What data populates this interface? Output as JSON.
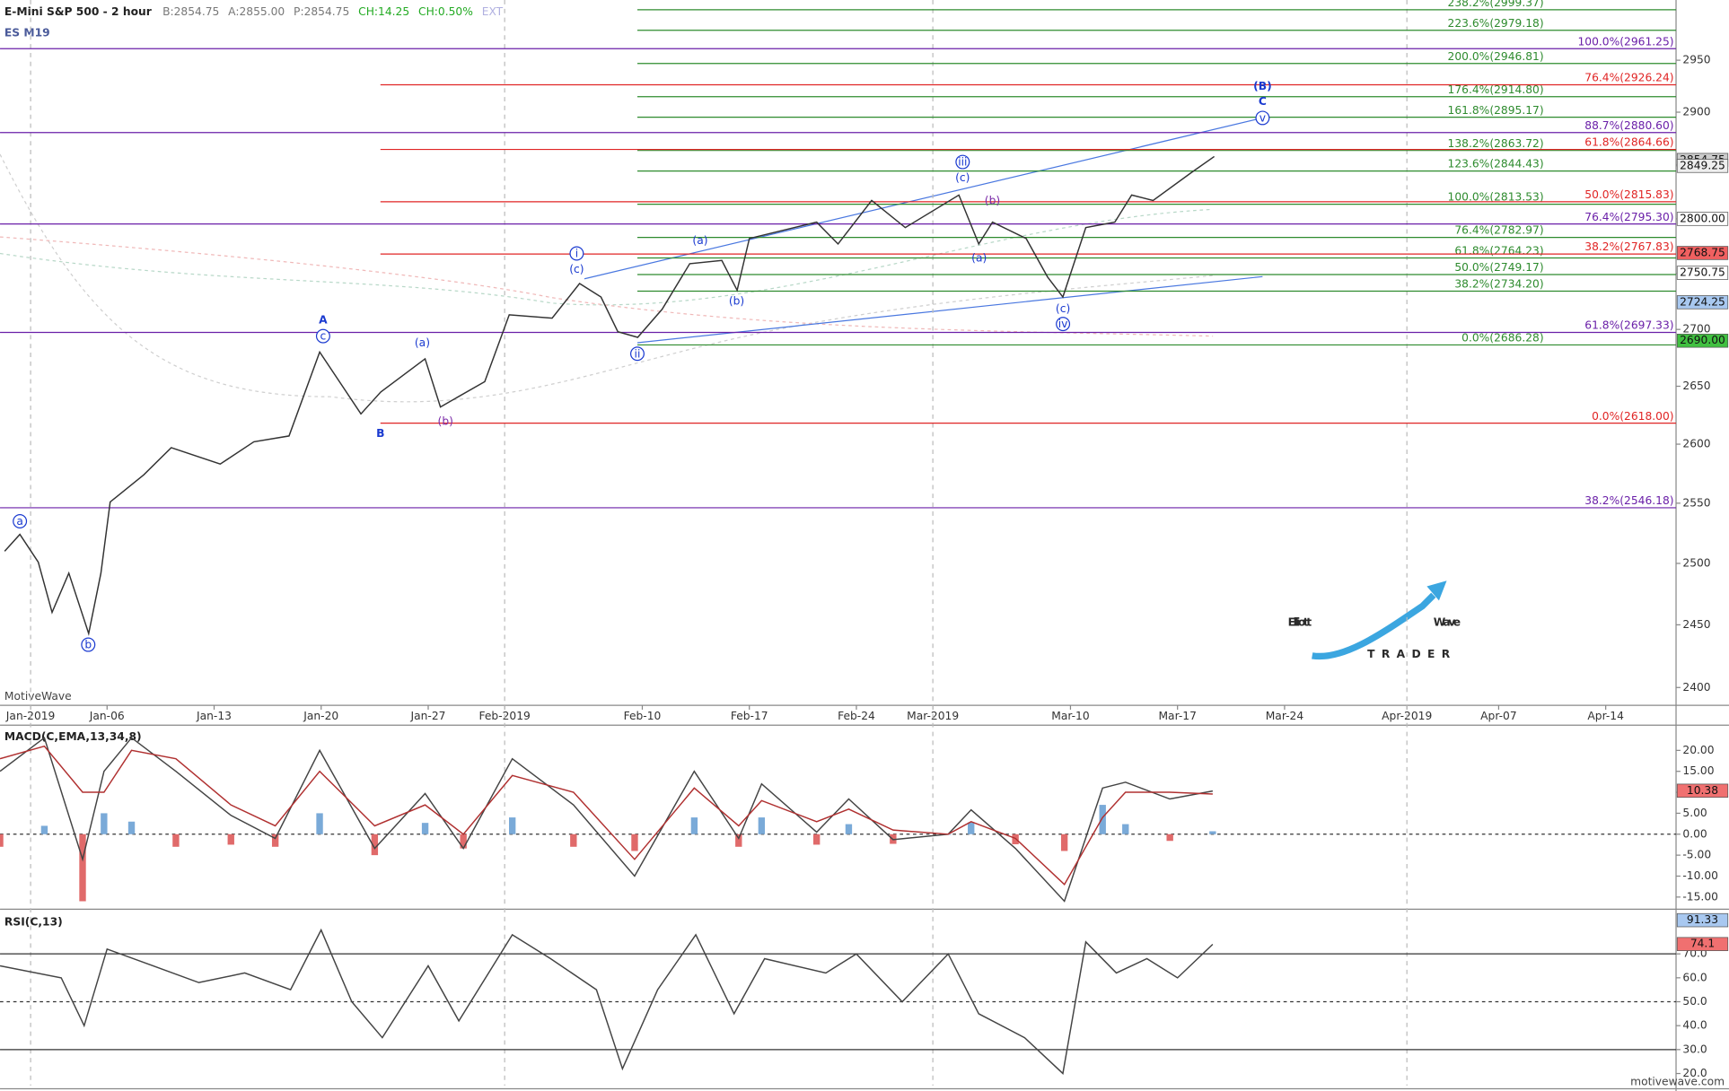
{
  "header": {
    "title": "E-Mini S&P 500 - 2 hour",
    "symbol": "ES M19",
    "quote": [
      {
        "text": "B:2854.75",
        "color": "#777777"
      },
      {
        "text": "A:2855.00",
        "color": "#777777"
      },
      {
        "text": "P:2854.75",
        "color": "#777777"
      },
      {
        "text": "CH:14.25",
        "color": "#22aa22"
      },
      {
        "text": "CH:0.50%",
        "color": "#22aa22"
      },
      {
        "text": "EXT",
        "color": "#b0b0e0"
      }
    ],
    "source": "MotiveWave",
    "watermark": "motivewave.com"
  },
  "logo": {
    "word1": "Elliott",
    "word2": "Wave",
    "sub": "TRADER"
  },
  "chart_data": [
    {
      "type": "line",
      "log": true,
      "color": "#333333",
      "xlim": [
        -2.0,
        107.6
      ],
      "xticks": [
        {
          "value": 0,
          "label": "Jan-2019"
        },
        {
          "value": 5,
          "label": "Jan-06"
        },
        {
          "value": 12,
          "label": "Jan-13"
        },
        {
          "value": 19,
          "label": "Jan-20"
        },
        {
          "value": 26,
          "label": "Jan-27"
        },
        {
          "value": 31,
          "label": "Feb-2019"
        },
        {
          "value": 40,
          "label": "Feb-10"
        },
        {
          "value": 47,
          "label": "Feb-17"
        },
        {
          "value": 54,
          "label": "Feb-24"
        },
        {
          "value": 59,
          "label": "Mar-2019"
        },
        {
          "value": 68,
          "label": "Mar-10"
        },
        {
          "value": 75,
          "label": "Mar-17"
        },
        {
          "value": 82,
          "label": "Mar-24"
        },
        {
          "value": 90,
          "label": "Apr-2019"
        },
        {
          "value": 96,
          "label": "Apr-07"
        },
        {
          "value": 103,
          "label": "Apr-14"
        }
      ],
      "ylim": [
        2386,
        3009
      ],
      "yticks": [
        2400,
        2450,
        2500,
        2550,
        2600,
        2650,
        2700,
        2750,
        2800,
        2850,
        2900,
        2950
      ],
      "x": [
        -1.7,
        -0.7,
        0.5,
        1.4,
        2.5,
        3.8,
        4.6,
        5.2,
        7.4,
        9.2,
        12.4,
        14.6,
        16.9,
        18.9,
        21.6,
        22.9,
        25.8,
        26.8,
        29.7,
        31.3,
        34.1,
        35.9,
        37.3,
        38.4,
        39.7,
        41.3,
        43.1,
        45.2,
        46.2,
        47.0,
        51.4,
        52.8,
        55.0,
        57.2,
        60.7,
        62.0,
        62.9,
        65.1,
        66.5,
        67.5,
        69.0,
        70.9,
        72.0,
        73.4,
        75.9,
        77.4
      ],
      "values": [
        2510,
        2524,
        2501,
        2460,
        2492,
        2443,
        2492,
        2551,
        2574,
        2597,
        2583,
        2602,
        2607,
        2680,
        2626,
        2645,
        2674,
        2632,
        2654,
        2713,
        2710,
        2741,
        2729,
        2698,
        2693,
        2718,
        2759,
        2762,
        2735,
        2782,
        2797,
        2777,
        2817,
        2792,
        2822,
        2777,
        2797,
        2782,
        2747,
        2729,
        2792,
        2797,
        2822,
        2817,
        2843,
        2858
      ],
      "fib_levels": [
        {
          "label": "238.2%(2999.37)",
          "value": 2999.37,
          "color": "#2e8b2e"
        },
        {
          "label": "223.6%(2979.18)",
          "value": 2979.18,
          "color": "#2e8b2e"
        },
        {
          "label": "200.0%(2946.81)",
          "value": 2946.81,
          "color": "#2e8b2e"
        },
        {
          "label": "176.4%(2914.80)",
          "value": 2914.8,
          "color": "#2e8b2e"
        },
        {
          "label": "161.8%(2895.17)",
          "value": 2895.17,
          "color": "#2e8b2e"
        },
        {
          "label": "138.2%(2863.72)",
          "value": 2863.72,
          "color": "#2e8b2e"
        },
        {
          "label": "123.6%(2844.43)",
          "value": 2844.43,
          "color": "#2e8b2e"
        },
        {
          "label": "100.0%(2813.53)",
          "value": 2813.53,
          "color": "#2e8b2e"
        },
        {
          "label": "76.4%(2782.97)",
          "value": 2782.97,
          "color": "#2e8b2e"
        },
        {
          "label": "61.8%(2764.23)",
          "value": 2764.23,
          "color": "#2e8b2e"
        },
        {
          "label": "50.0%(2749.17)",
          "value": 2749.17,
          "color": "#2e8b2e"
        },
        {
          "label": "38.2%(2734.20)",
          "value": 2734.2,
          "color": "#2e8b2e"
        },
        {
          "label": "0.0%(2686.28)",
          "value": 2686.28,
          "color": "#2e8b2e"
        },
        {
          "label": "76.4%(2926.24)",
          "value": 2926.24,
          "color": "#e02424"
        },
        {
          "label": "61.8%(2864.66)",
          "value": 2864.66,
          "color": "#e02424"
        },
        {
          "label": "50.0%(2815.83)",
          "value": 2815.83,
          "color": "#e02424"
        },
        {
          "label": "38.2%(2767.83)",
          "value": 2767.83,
          "color": "#e02424"
        },
        {
          "label": "0.0%(2618.00)",
          "value": 2618.0,
          "color": "#e02424"
        },
        {
          "label": "100.0%(2961.25)",
          "value": 2961.25,
          "color": "#6a1fa8"
        },
        {
          "label": "88.7%(2880.60)",
          "value": 2880.6,
          "color": "#6a1fa8"
        },
        {
          "label": "76.4%(2795.30)",
          "value": 2795.3,
          "color": "#6a1fa8"
        },
        {
          "label": "61.8%(2697.33)",
          "value": 2697.33,
          "color": "#6a1fa8"
        },
        {
          "label": "38.2%(2546.18)",
          "value": 2546.18,
          "color": "#6a1fa8"
        }
      ],
      "price_tags": [
        {
          "value": 2854.75,
          "label": "2854.75",
          "color": "#cccccc"
        },
        {
          "value": 2849.25,
          "label": "2849.25",
          "color": "#eeeeee"
        },
        {
          "value": 2800.0,
          "label": "2800.00",
          "color": "#ffffff"
        },
        {
          "value": 2768.75,
          "label": "2768.75",
          "color": "#f06060"
        },
        {
          "value": 2750.75,
          "label": "2750.75",
          "color": "#ffffff"
        },
        {
          "value": 2724.25,
          "label": "2724.25",
          "color": "#a8c8f0"
        },
        {
          "value": 2690.0,
          "label": "2690.00",
          "color": "#40c040"
        }
      ],
      "wave_labels": [
        "a",
        "b",
        "A",
        "c",
        "B",
        "(a)",
        "(b)",
        "i",
        "(c)",
        "ii",
        "(a)",
        "(b)",
        "iii",
        "(c)",
        "(b)",
        "(a)",
        "(c)",
        "iv",
        "v",
        "C",
        "(B)"
      ]
    },
    {
      "type": "line",
      "title": "MACD(C,EMA,13,34,8)",
      "xlim": [
        -2.0,
        107.6
      ],
      "ylim": [
        -17.1,
        25.5
      ],
      "yticks": [
        {
          "value": 20,
          "label": "20.00"
        },
        {
          "value": 15,
          "label": "15.00"
        },
        {
          "value": 10,
          "label": "10.00"
        },
        {
          "value": 5,
          "label": "5.00"
        },
        {
          "value": 0,
          "label": "0.00"
        },
        {
          "value": -5,
          "label": "-5.00"
        },
        {
          "value": -10,
          "label": "-10.00"
        },
        {
          "value": -15,
          "label": "-15.00"
        }
      ],
      "x": [
        -2.0,
        0.9,
        3.4,
        4.8,
        6.6,
        9.5,
        13.1,
        16.0,
        18.9,
        22.5,
        25.8,
        28.3,
        31.5,
        35.5,
        39.5,
        43.4,
        46.3,
        47.8,
        51.4,
        53.5,
        56.4,
        60.0,
        61.5,
        64.4,
        67.6,
        70.1,
        71.6,
        74.5,
        77.3
      ],
      "series": [
        {
          "color": "#444444",
          "values": [
            15,
            23,
            -6,
            15,
            23,
            15,
            4.5,
            -1,
            20,
            -3.4,
            9.7,
            -3.4,
            18,
            7,
            -10,
            15,
            -1,
            12,
            0.5,
            8.4,
            -1.3,
            0,
            5.8,
            -3.4,
            -16,
            11,
            12.4,
            8.4,
            10.3
          ]
        },
        {
          "color": "#b03030",
          "values": [
            18,
            21,
            10,
            10,
            20,
            18,
            7,
            2,
            15,
            2,
            7,
            0,
            14,
            10,
            -6,
            11,
            2,
            8,
            3,
            6,
            1,
            0,
            3,
            -1,
            -12,
            4,
            10,
            10,
            9.6
          ]
        }
      ],
      "histogram": {
        "pos_color": "#7aaad8",
        "neg_color": "#e06a6a",
        "values": [
          -3,
          2,
          -16,
          5,
          3,
          -3,
          -2.5,
          -3,
          5,
          -5,
          2.7,
          -3.4,
          4,
          -3,
          -4,
          4,
          -3,
          4,
          -2.5,
          2.4,
          -2.3,
          0,
          2.8,
          -2.4,
          -4,
          7,
          2.4,
          -1.6,
          0.7
        ]
      },
      "price_tags": [
        {
          "value": 10.38,
          "label": "10.38",
          "color": "#f07070"
        }
      ]
    },
    {
      "type": "line",
      "title": "RSI(C,13)",
      "color": "#444444",
      "xlim": [
        -2.0,
        107.6
      ],
      "ylim": [
        15,
        87.3
      ],
      "yticks": [
        {
          "value": 70,
          "label": "70.0"
        },
        {
          "value": 60,
          "label": "60.0"
        },
        {
          "value": 50,
          "label": "50.0"
        },
        {
          "value": 40,
          "label": "40.0"
        },
        {
          "value": 30,
          "label": "30.0"
        },
        {
          "value": 20,
          "label": "20.0"
        }
      ],
      "levels": [
        {
          "value": 70,
          "dashed": false
        },
        {
          "value": 50,
          "dashed": true
        },
        {
          "value": 30,
          "dashed": false
        }
      ],
      "x": [
        -2,
        2,
        3.5,
        5,
        8,
        11,
        14,
        17,
        19,
        21,
        23,
        26,
        28,
        31.5,
        34,
        37,
        38.7,
        41,
        43.5,
        46,
        48,
        52,
        54,
        57,
        60,
        62,
        65,
        67.5,
        69,
        71,
        73,
        75,
        77.3
      ],
      "values": [
        65,
        60,
        40,
        72,
        65,
        58,
        62,
        55,
        80,
        50,
        35,
        65,
        42,
        78,
        68,
        55,
        22,
        55,
        78,
        45,
        68,
        62,
        70,
        50,
        70,
        45,
        35,
        20,
        75,
        62,
        68,
        60,
        74
      ],
      "price_tags": [
        {
          "value": 91.33,
          "label": "91.33",
          "color": "#a8c8f0"
        },
        {
          "value": 74.1,
          "label": "74.1",
          "color": "#f07070"
        }
      ]
    }
  ]
}
